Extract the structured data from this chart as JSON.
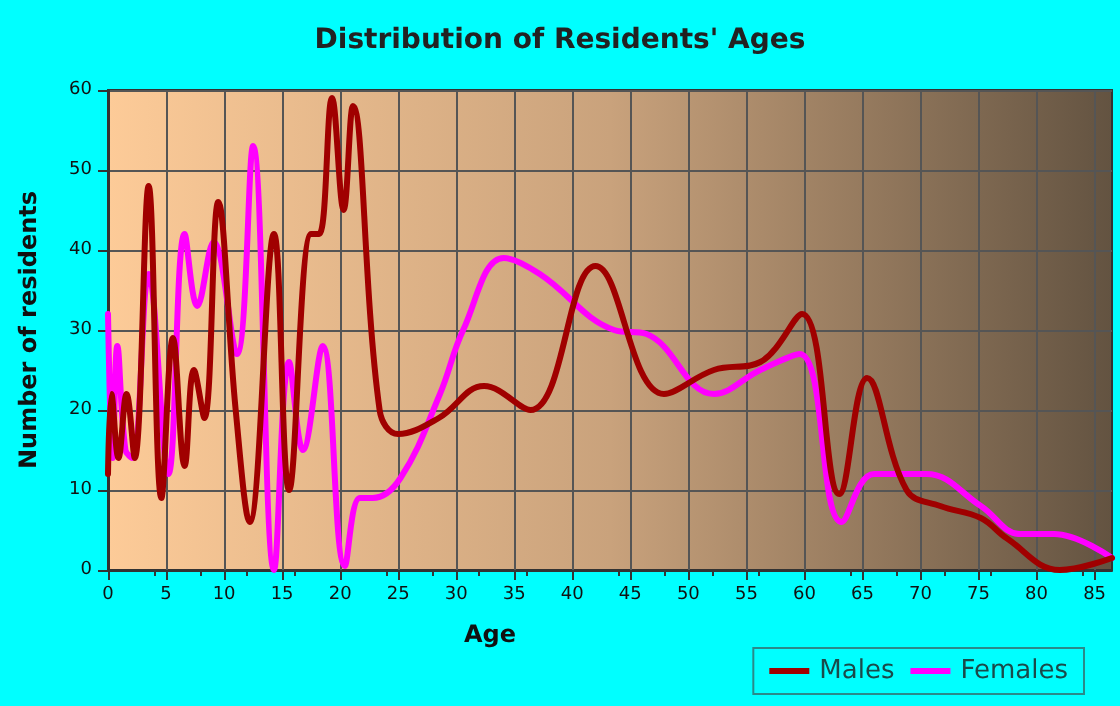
{
  "chart_data": {
    "type": "line",
    "title": "Distribution of Residents' Ages",
    "xlabel": "Age",
    "ylabel": "Number of residents",
    "xlim": [
      0,
      86.5
    ],
    "xticks": [
      0,
      5,
      10,
      15,
      20,
      25,
      30,
      35,
      40,
      45,
      50,
      55,
      60,
      65,
      70,
      75,
      80,
      85
    ],
    "ylim": [
      0,
      60
    ],
    "yticks": [
      0,
      10,
      20,
      30,
      40,
      50,
      60
    ],
    "grid": true,
    "legend": "bottom right",
    "marker": "none",
    "line_style": "solid",
    "series": [
      {
        "name": "Males",
        "color": "#a00000",
        "x": [
          0,
          0.3,
          0.9,
          1.6,
          2.3,
          3.5,
          4.6,
          5.6,
          6.6,
          7.4,
          8.3,
          9.5,
          11,
          12.2,
          14.3,
          15.6,
          17.5,
          18.2,
          19.3,
          20.3,
          21.1,
          23.4,
          25,
          28.5,
          32.4,
          36.4,
          42,
          47.9,
          52.2,
          56.2,
          59.8,
          63,
          65.4,
          68.8,
          71.7,
          75.2,
          77.4,
          82,
          86.5
        ],
        "values": [
          12,
          22,
          14,
          22,
          14,
          48,
          9,
          29,
          13,
          25,
          19,
          46,
          20,
          6,
          42,
          10,
          42,
          42,
          59,
          45,
          58,
          20,
          17,
          19,
          23,
          20,
          38,
          22,
          25,
          26,
          32,
          9.5,
          24,
          10,
          8,
          6.5,
          4,
          0,
          1.5
        ]
      },
      {
        "name": "Females",
        "color": "#ff00ff",
        "x": [
          0,
          0.4,
          0.8,
          1.5,
          2.1,
          3.5,
          5.2,
          6.6,
          7.7,
          9.1,
          11.1,
          12.5,
          14.3,
          15.6,
          16.8,
          18.5,
          20.4,
          21.7,
          22.8,
          25.2,
          28.6,
          30.6,
          34.1,
          37.2,
          43.6,
          46.4,
          52.2,
          56.2,
          59.6,
          63.2,
          66,
          70.5,
          75.2,
          78.6,
          81.5,
          86.5
        ],
        "values": [
          32,
          14,
          28,
          15,
          14,
          37,
          12,
          42,
          33,
          41,
          27,
          53,
          0,
          26,
          15,
          28,
          0.5,
          9,
          9,
          11.5,
          22,
          30,
          39,
          37,
          30,
          29.5,
          22,
          25,
          27,
          6,
          12,
          12,
          8,
          4.5,
          4.5,
          1.5
        ]
      }
    ]
  }
}
